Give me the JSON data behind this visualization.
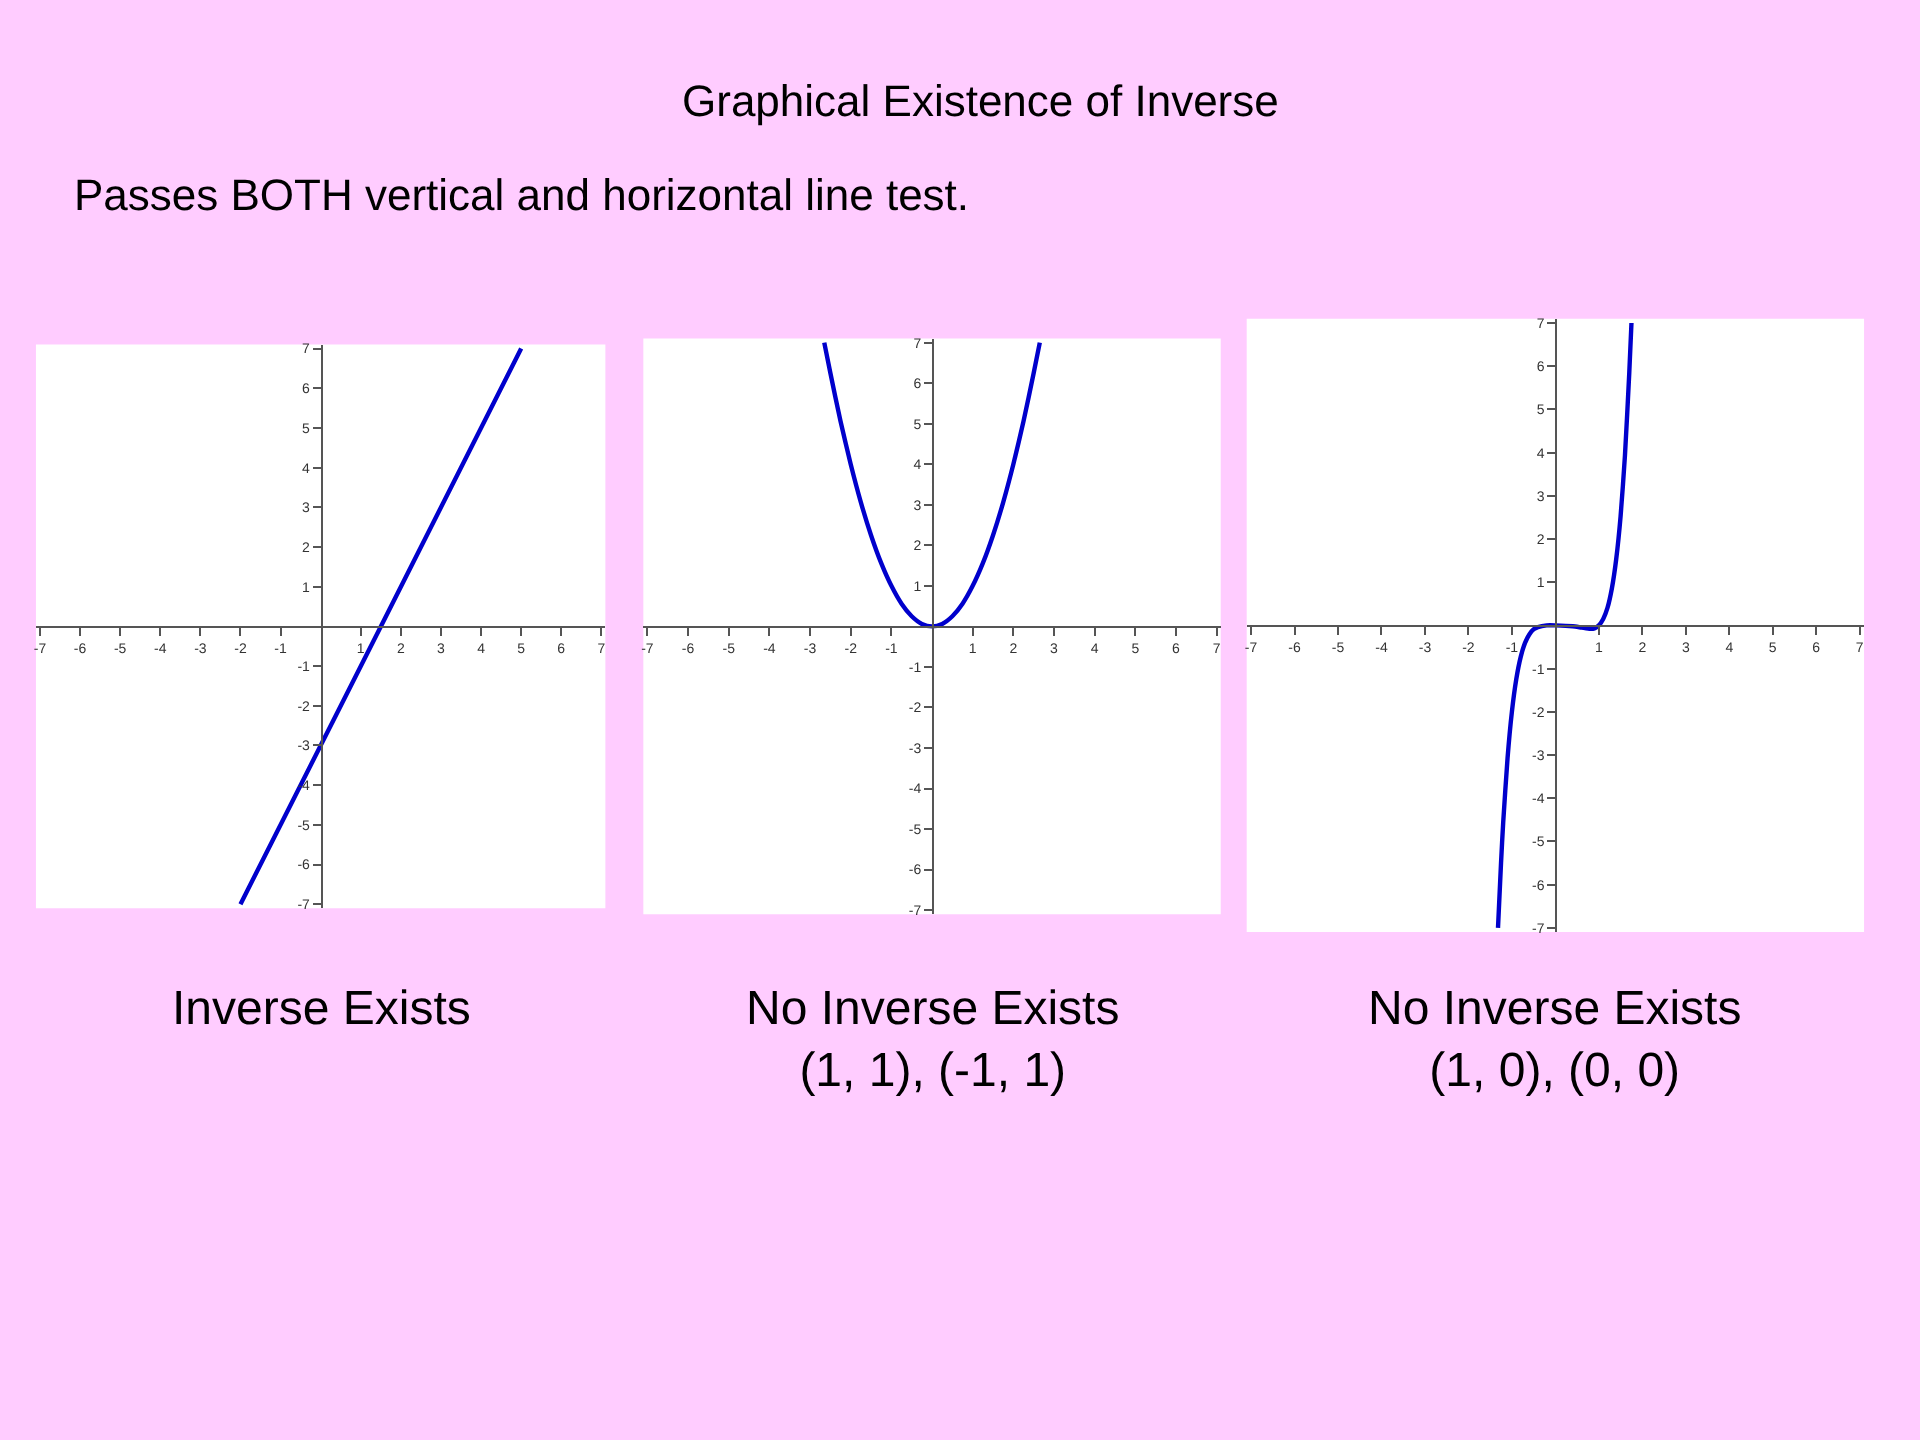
{
  "chart_data": [
    {
      "type": "line",
      "subtitle": "Passes BOTH vertical and horizontal line test.",
      "annotations": [
        "Inverse Exists"
      ],
      "x": [
        -2,
        0,
        1.5,
        5
      ],
      "series": [
        {
          "color": "#0000cc",
          "values": [
            -7,
            -3,
            0,
            7
          ]
        }
      ],
      "xlim": [
        -7.1,
        7.1
      ],
      "ylim": [
        -7.1,
        7.1
      ],
      "xticks": [
        -7,
        -6,
        -5,
        -4,
        -3,
        -2,
        -1,
        1,
        2,
        3,
        4,
        5,
        6,
        7
      ],
      "yticks": [
        -7,
        -6,
        -5,
        -4,
        -3,
        -2,
        -1,
        1,
        2,
        3,
        4,
        5,
        6,
        7
      ],
      "line_style": "solid"
    },
    {
      "type": "line",
      "title": "Graphical Existence of Inverse",
      "annotations": [
        "No Inverse Exists\n(1, 1), (-1, 1)"
      ],
      "x": [
        -2.65,
        -2.5,
        -2.25,
        -2,
        -1.75,
        -1.5,
        -1.25,
        -1,
        -0.75,
        -0.5,
        -0.25,
        0,
        0.25,
        0.5,
        0.75,
        1,
        1.25,
        1.5,
        1.75,
        2,
        2.25,
        2.5,
        2.65
      ],
      "series": [
        {
          "color": "#0000cc",
          "values": [
            7.0,
            6.25,
            5.06,
            4,
            3.06,
            2.25,
            1.56,
            1,
            0.56,
            0.25,
            0.06,
            0,
            0.06,
            0.25,
            0.56,
            1,
            1.56,
            2.25,
            3.06,
            4,
            5.06,
            6.25,
            7.0
          ]
        }
      ],
      "xlim": [
        -7.1,
        7.1
      ],
      "ylim": [
        -7.1,
        7.1
      ],
      "xticks": [
        -7,
        -6,
        -5,
        -4,
        -3,
        -2,
        -1,
        1,
        2,
        3,
        4,
        5,
        6,
        7
      ],
      "yticks": [
        -7,
        -6,
        -5,
        -4,
        -3,
        -2,
        -1,
        1,
        2,
        3,
        4,
        5,
        6,
        7
      ],
      "line_style": "solid"
    },
    {
      "type": "line",
      "annotations": [
        "No Inverse Exists\n(1, 0), (0, 0)"
      ],
      "x": [
        -1.32,
        -1.25,
        -1.2,
        -1.1,
        -1.0,
        -0.9,
        -0.8,
        -0.7,
        -0.6,
        -0.5,
        -0.4,
        -0.2,
        0,
        0.4,
        0.6,
        0.8,
        0.9,
        1.0,
        1.1,
        1.2,
        1.3,
        1.4,
        1.5,
        1.6,
        1.7,
        1.75
      ],
      "series": [
        {
          "color": "#0000cc",
          "values": [
            -7.0,
            -5.49,
            -4.56,
            -3.07,
            -2,
            -1.25,
            -0.74,
            -0.41,
            -0.21,
            -0.09,
            -0.04,
            0,
            0,
            -0.02,
            -0.05,
            -0.08,
            -0.07,
            0,
            0.15,
            0.41,
            0.86,
            1.54,
            2.53,
            3.93,
            5.85,
            7.0
          ]
        }
      ],
      "xlim": [
        -7.1,
        7.1
      ],
      "ylim": [
        -7.1,
        7.1
      ],
      "xticks": [
        -7,
        -6,
        -5,
        -4,
        -3,
        -2,
        -1,
        1,
        2,
        3,
        4,
        5,
        6,
        7
      ],
      "yticks": [
        -7,
        -6,
        -5,
        -4,
        -3,
        -2,
        -1,
        1,
        2,
        3,
        4,
        5,
        6,
        7
      ],
      "line_style": "solid"
    }
  ]
}
